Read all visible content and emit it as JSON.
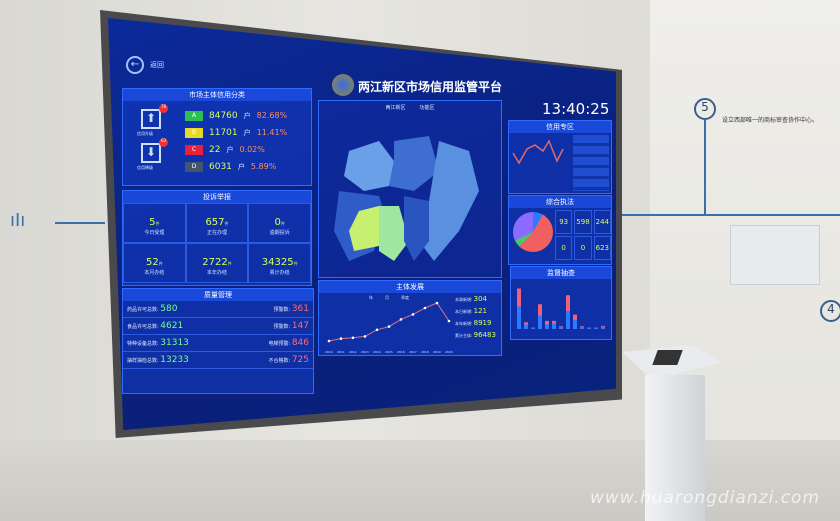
{
  "screen": {
    "back_label": "返回",
    "title": "两江新区市场信用监管平台",
    "clock": "13:40:25",
    "credit": {
      "title": "市场主体信用分类",
      "upgrade_label": "信用升级",
      "upgrade_count": "78",
      "downgrade_label": "信用降级",
      "downgrade_count": "63",
      "grades": [
        {
          "grade": "A",
          "count": "84760",
          "unit": "户",
          "pct": "82.68%",
          "color": "#2fbf4f"
        },
        {
          "grade": "B",
          "count": "11701",
          "unit": "户",
          "pct": "11.41%",
          "color": "#e6d92a"
        },
        {
          "grade": "C",
          "count": "22",
          "unit": "户",
          "pct": "0.02%",
          "color": "#e8203a"
        },
        {
          "grade": "D",
          "count": "6031",
          "unit": "户",
          "pct": "5.89%",
          "color": "#44546a"
        }
      ]
    },
    "complaints": {
      "title": "投诉举报",
      "cells": [
        {
          "value": "5",
          "unit": "件",
          "label": "今日受理"
        },
        {
          "value": "657",
          "unit": "件",
          "label": "正在办理"
        },
        {
          "value": "0",
          "unit": "件",
          "label": "逾期投诉"
        },
        {
          "value": "52",
          "unit": "件",
          "label": "本月办结"
        },
        {
          "value": "2722",
          "unit": "件",
          "label": "本年办结"
        },
        {
          "value": "34325",
          "unit": "件",
          "label": "累计办结"
        }
      ]
    },
    "quality": {
      "title": "质量管理",
      "left": [
        {
          "label": "药品许可总数:",
          "value": "580"
        },
        {
          "label": "食品许可总数:",
          "value": "4621"
        },
        {
          "label": "特种设备总数:",
          "value": "31313"
        },
        {
          "label": "抽样抽检总数:",
          "value": "13233"
        }
      ],
      "right": [
        {
          "label": "预警数:",
          "value": "361"
        },
        {
          "label": "预警数:",
          "value": "147"
        },
        {
          "label": "电梯预警:",
          "value": "846"
        },
        {
          "label": "不合格数:",
          "value": "725"
        }
      ]
    },
    "map": {
      "legend": [
        "两江新区",
        "功能区"
      ]
    },
    "development": {
      "title": "主体发展",
      "legend": [
        "年",
        "月",
        "季度"
      ],
      "years": [
        "2010",
        "2011",
        "2012",
        "2013",
        "2014",
        "2015",
        "2016",
        "2017",
        "2018",
        "2019",
        "2020"
      ],
      "values": [
        2000,
        3200,
        3600,
        4300,
        7600,
        9200,
        12800,
        15300,
        18500,
        21000,
        12000
      ],
      "stats": [
        {
          "label": "本周新增:",
          "value": "304"
        },
        {
          "label": "本日新增:",
          "value": "121"
        },
        {
          "label": "本年新增:",
          "value": "8919"
        },
        {
          "label": "累计主体:",
          "value": "96483"
        }
      ]
    },
    "trend": {
      "title": "信用专区"
    },
    "law": {
      "title": "综合执法",
      "cells": [
        "93",
        "598",
        "244",
        "0",
        "0",
        "623"
      ]
    },
    "bars": {
      "title": "监督抽查",
      "values": [
        [
          50,
          40
        ],
        [
          10,
          5
        ],
        [
          2,
          1
        ],
        [
          30,
          25
        ],
        [
          10,
          8
        ],
        [
          12,
          6
        ],
        [
          4,
          2
        ],
        [
          40,
          35
        ],
        [
          20,
          12
        ],
        [
          4,
          2
        ],
        [
          2,
          1
        ],
        [
          2,
          1
        ],
        [
          5,
          2
        ]
      ],
      "colors": [
        "#2a7bff",
        "#f0607a"
      ]
    }
  },
  "wall": {
    "step": "5",
    "step_next": "4",
    "caption": "设立西部唯一的商标审查协作中心。"
  },
  "watermark": "www.huarongdianzi.com"
}
